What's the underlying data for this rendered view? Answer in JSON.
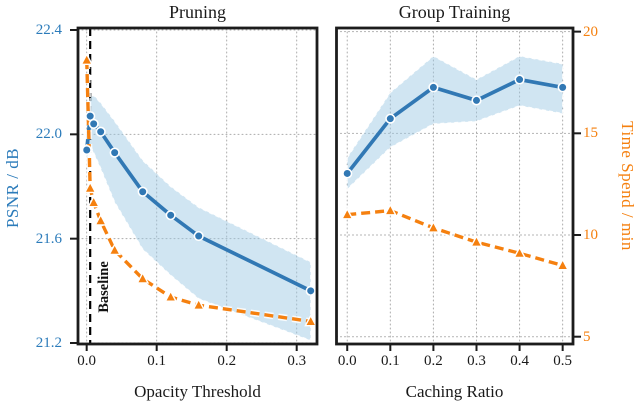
{
  "figure": {
    "left_panel_title": "Pruning",
    "right_panel_title": "Group Training",
    "left_xlabel": "Opacity Threshold",
    "right_xlabel": "Caching Ratio",
    "left_ylabel": "PSNR / dB",
    "right_ylabel": "Time Spend / min",
    "baseline_label": "Baseline"
  },
  "colors": {
    "psnr_blue": "#3178b4",
    "blue_tick_label": "#2b7bba",
    "time_orange": "#f5800f",
    "band_fill": "#9dc8e4",
    "grid": "#ababab",
    "spine": "#1c1c1c",
    "baseline_line": "#000000"
  },
  "chart_data": [
    {
      "type": "line",
      "title": "Pruning",
      "xlabel": "Opacity Threshold",
      "ylabel": "PSNR / dB",
      "xlim": [
        -0.0124,
        0.329
      ],
      "ylim_left": [
        21.2,
        22.4
      ],
      "ylim_right": [
        4.69,
        20.08
      ],
      "grid": true,
      "x_ticks": {
        "labels": [
          "0.0",
          "0.1",
          "0.2",
          "0.3"
        ],
        "values": [
          0.0,
          0.1,
          0.2,
          0.3
        ]
      },
      "y_ticks_left": {
        "labels": [
          "22.4",
          "22.0",
          "21.6",
          "21.2"
        ],
        "values": [
          22.4,
          22.0,
          21.6,
          21.2
        ]
      },
      "annotation": {
        "label": "Baseline",
        "x": 0.005,
        "style": "dashed-vertical"
      },
      "series": [
        {
          "name": "PSNR",
          "axis": "left",
          "marker": "circle",
          "line_style": "solid",
          "x": [
            0.0001,
            0.005,
            0.01,
            0.02,
            0.04,
            0.08,
            0.12,
            0.16,
            0.32
          ],
          "y": [
            21.94,
            22.07,
            22.04,
            22.01,
            21.93,
            21.78,
            21.69,
            21.61,
            21.4
          ],
          "band_upper": [
            21.99,
            22.14,
            22.15,
            22.12,
            22.05,
            21.9,
            21.8,
            21.72,
            21.51
          ],
          "band_lower": [
            21.89,
            21.96,
            21.93,
            21.87,
            21.74,
            21.56,
            21.46,
            21.37,
            21.21
          ]
        },
        {
          "name": "Time Spend",
          "axis": "right",
          "marker": "triangle",
          "line_style": "dashed",
          "x": [
            0.0001,
            0.005,
            0.01,
            0.02,
            0.04,
            0.08,
            0.12,
            0.16,
            0.32
          ],
          "y": [
            18.6,
            12.3,
            11.6,
            10.7,
            9.25,
            7.85,
            6.95,
            6.55,
            5.75
          ]
        }
      ]
    },
    {
      "type": "line",
      "title": "Group Training",
      "xlabel": "Caching Ratio",
      "ylabel": "Time Spend / min",
      "xlim": [
        -0.0249,
        0.524
      ],
      "ylim_left": [
        21.2,
        22.4
      ],
      "ylim_right": [
        4.69,
        20.08
      ],
      "grid": true,
      "x_ticks": {
        "labels": [
          "0.0",
          "0.1",
          "0.2",
          "0.3",
          "0.4",
          "0.5"
        ],
        "values": [
          0.0,
          0.1,
          0.2,
          0.3,
          0.4,
          0.5
        ]
      },
      "y_ticks_right": {
        "labels": [
          "20",
          "15",
          "10",
          "5"
        ],
        "values": [
          20,
          15,
          10,
          5
        ]
      },
      "series": [
        {
          "name": "PSNR",
          "axis": "left",
          "marker": "circle",
          "line_style": "solid",
          "x": [
            0.0,
            0.1,
            0.2,
            0.3,
            0.4,
            0.5
          ],
          "y": [
            21.85,
            22.06,
            22.18,
            22.13,
            22.21,
            22.18
          ],
          "band_upper": [
            21.91,
            22.16,
            22.3,
            22.21,
            22.3,
            22.27
          ],
          "band_lower": [
            21.79,
            21.95,
            22.04,
            22.05,
            22.11,
            22.08
          ]
        },
        {
          "name": "Time Spend",
          "axis": "right",
          "marker": "triangle",
          "line_style": "dashed",
          "x": [
            0.0,
            0.1,
            0.2,
            0.3,
            0.4,
            0.5
          ],
          "y": [
            11.0,
            11.2,
            10.35,
            9.65,
            9.1,
            8.5
          ]
        }
      ]
    }
  ]
}
